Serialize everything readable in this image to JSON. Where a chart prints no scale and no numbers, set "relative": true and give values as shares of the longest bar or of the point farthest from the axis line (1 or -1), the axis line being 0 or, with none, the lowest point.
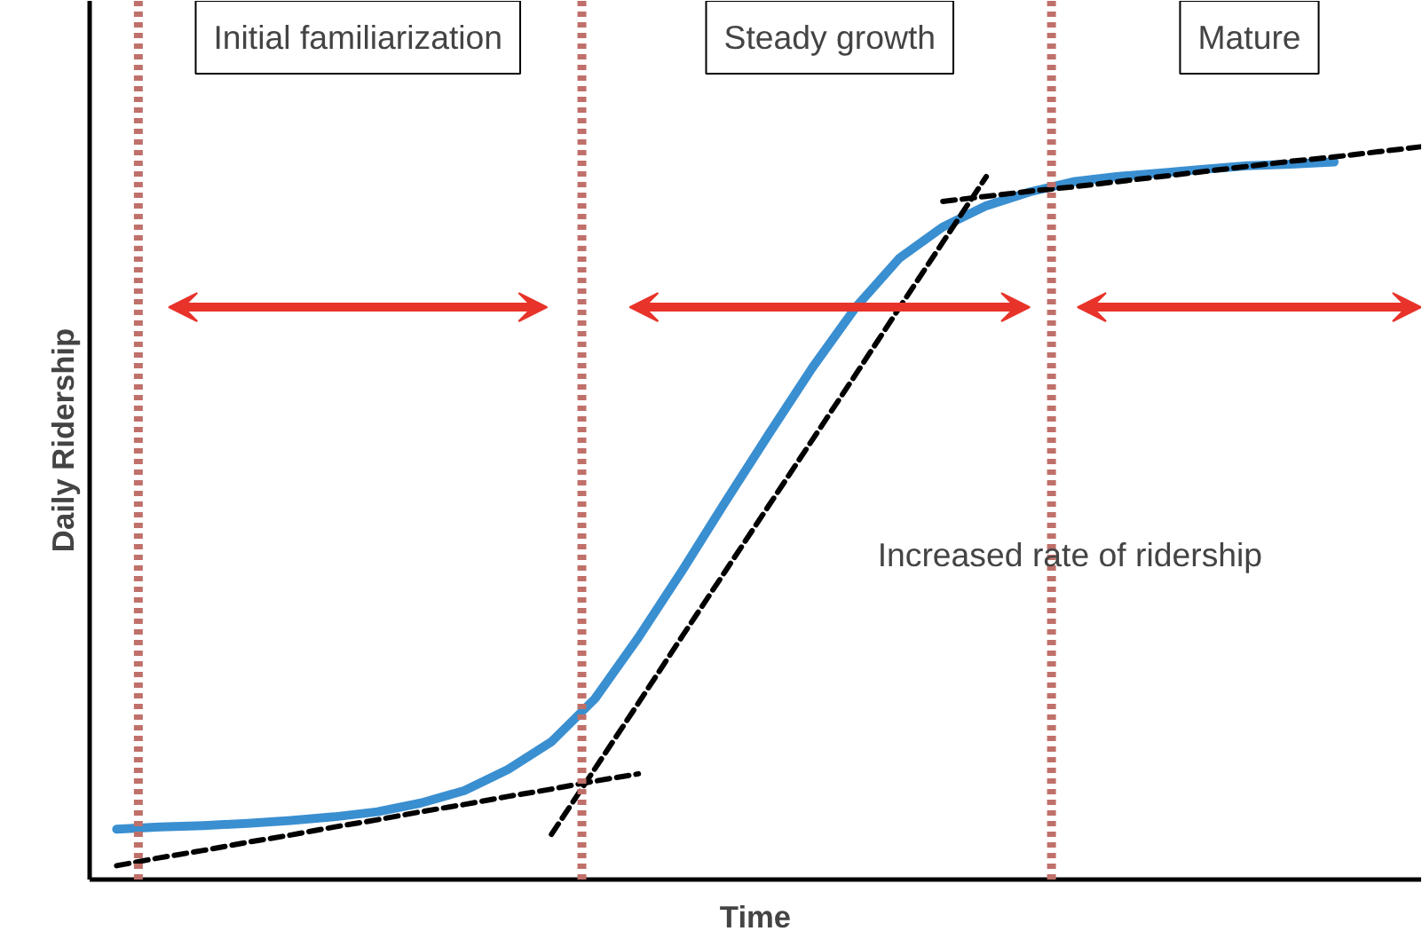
{
  "chart_data": {
    "type": "line",
    "relative": true,
    "xlabel": "Time",
    "ylabel": "Daily Ridership",
    "grid": false,
    "marker": "none",
    "categories": [
      null,
      null,
      null,
      null,
      null,
      null,
      null,
      null,
      null,
      null,
      null,
      null,
      null,
      null,
      null,
      null,
      null,
      null,
      null,
      null,
      null,
      null,
      null,
      null,
      null,
      null,
      null,
      null,
      null,
      null,
      null
    ],
    "series": [
      {
        "color": "#3a8fd0",
        "line_style": "solid",
        "values": [
          0.064,
          0.067,
          0.069,
          0.072,
          0.076,
          0.081,
          0.088,
          0.1,
          0.117,
          0.146,
          0.184,
          0.243,
          0.327,
          0.418,
          0.513,
          0.606,
          0.697,
          0.78,
          0.847,
          0.89,
          0.919,
          0.938,
          0.952,
          0.959,
          0.964,
          0.969,
          0.974,
          0.976,
          0.979,
          null,
          null
        ]
      },
      {
        "color": "#000000",
        "line_style": "dashed",
        "values": [
          0.014,
          0.025,
          0.035,
          0.046,
          0.056,
          0.067,
          0.077,
          0.088,
          0.098,
          0.109,
          0.119,
          0.13,
          0.14,
          null,
          null,
          null,
          null,
          null,
          null,
          null,
          null,
          null,
          null,
          null,
          null,
          null,
          null,
          null,
          null,
          null,
          null
        ]
      },
      {
        "color": "#000000",
        "line_style": "dashed",
        "values": [
          null,
          null,
          null,
          null,
          null,
          null,
          null,
          null,
          null,
          null,
          0.057,
          0.147,
          0.237,
          0.328,
          0.418,
          0.508,
          0.598,
          0.688,
          0.779,
          0.869,
          0.959,
          null,
          null,
          null,
          null,
          null,
          null,
          null,
          null,
          null,
          null
        ]
      },
      {
        "color": "#000000",
        "line_style": "dashed",
        "values": [
          null,
          null,
          null,
          null,
          null,
          null,
          null,
          null,
          null,
          null,
          null,
          null,
          null,
          null,
          null,
          null,
          null,
          null,
          null,
          0.925,
          0.932,
          0.939,
          0.945,
          0.952,
          0.959,
          0.966,
          0.973,
          0.98,
          0.986,
          0.993,
          1.0
        ]
      }
    ],
    "annotations": [
      "Initial familiarization",
      "Steady growth",
      "Mature",
      "Increased rate of ridership"
    ]
  }
}
